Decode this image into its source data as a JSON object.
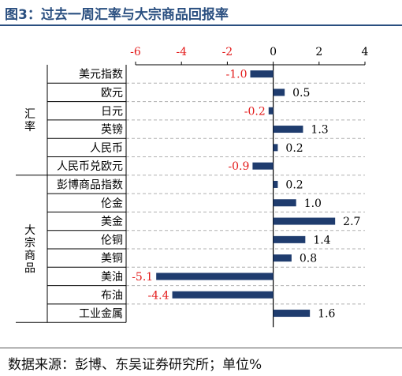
{
  "title": "图3：过去一周汇率与大宗商品回报率",
  "source": "数据来源：彭博、东吴证券研究所；单位%",
  "colors": {
    "bar": "#1f3c6e",
    "negative_label": "#e31b1b",
    "positive_label": "#000000",
    "title": "#2a4f80"
  },
  "chart_data": {
    "type": "bar",
    "orientation": "horizontal",
    "xlim": [
      -6,
      4
    ],
    "xticks": [
      -6,
      -4,
      -2,
      0,
      2,
      4
    ],
    "grid": false,
    "groups": [
      {
        "name": "汇率",
        "start": 0,
        "end": 5
      },
      {
        "name": "大宗商品",
        "start": 6,
        "end": 13
      }
    ],
    "categories": [
      "美元指数",
      "欧元",
      "日元",
      "英镑",
      "人民币",
      "人民币兑欧元",
      "彭博商品指数",
      "伦金",
      "美金",
      "伦铜",
      "美铜",
      "美油",
      "布油",
      "工业金属"
    ],
    "values": [
      -1.0,
      0.5,
      -0.2,
      1.3,
      0.2,
      -0.9,
      0.2,
      1.0,
      2.7,
      1.4,
      0.8,
      -5.1,
      -4.4,
      1.6
    ],
    "value_labels": [
      "-1.0",
      "0.5",
      "-0.2",
      "1.3",
      "0.2",
      "-0.9",
      "0.2",
      "1.0",
      "2.7",
      "1.4",
      "0.8",
      "-5.1",
      "-4.4",
      "1.6"
    ]
  }
}
